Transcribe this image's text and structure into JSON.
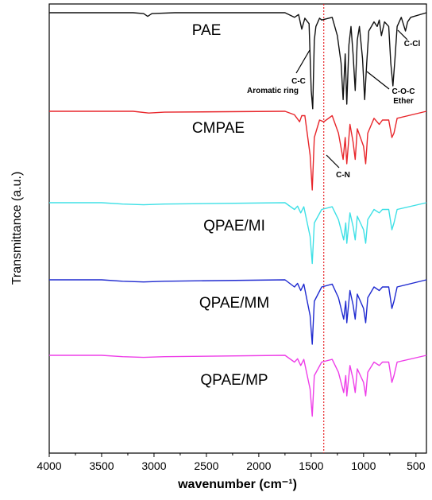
{
  "chart_data": {
    "type": "line",
    "title": "",
    "xlabel": "wavenumber (cm⁻¹)",
    "ylabel": "Transmittance (a.u.)",
    "x_range": [
      4000,
      400
    ],
    "x_reversed": true,
    "x_ticks": [
      4000,
      3500,
      3000,
      2500,
      2000,
      1500,
      1000,
      500
    ],
    "reference_line": {
      "x": 1380,
      "style": "dotted",
      "color": "#e8262b"
    },
    "legend": "none",
    "grid": false,
    "series": [
      {
        "name": "PAE",
        "color": "#111111",
        "baseline": 0.0,
        "points": [
          [
            4000,
            0.0
          ],
          [
            3200,
            0.0
          ],
          [
            3100,
            0.01
          ],
          [
            3060,
            0.04
          ],
          [
            3020,
            0.01
          ],
          [
            2800,
            0.0
          ],
          [
            1750,
            0.0
          ],
          [
            1660,
            0.05
          ],
          [
            1620,
            0.02
          ],
          [
            1590,
            0.18
          ],
          [
            1560,
            0.06
          ],
          [
            1520,
            0.12
          ],
          [
            1500,
            0.85
          ],
          [
            1485,
            1.05
          ],
          [
            1470,
            0.3
          ],
          [
            1455,
            0.15
          ],
          [
            1420,
            0.06
          ],
          [
            1400,
            0.08
          ],
          [
            1300,
            0.05
          ],
          [
            1250,
            0.25
          ],
          [
            1215,
            0.55
          ],
          [
            1195,
            0.95
          ],
          [
            1175,
            0.45
          ],
          [
            1160,
            1.0
          ],
          [
            1140,
            0.35
          ],
          [
            1120,
            0.15
          ],
          [
            1100,
            0.45
          ],
          [
            1080,
            0.85
          ],
          [
            1060,
            0.3
          ],
          [
            1040,
            0.15
          ],
          [
            1010,
            0.5
          ],
          [
            990,
            0.95
          ],
          [
            970,
            0.55
          ],
          [
            950,
            0.2
          ],
          [
            900,
            0.1
          ],
          [
            870,
            0.15
          ],
          [
            850,
            0.08
          ],
          [
            830,
            0.25
          ],
          [
            800,
            0.1
          ],
          [
            760,
            0.15
          ],
          [
            740,
            0.55
          ],
          [
            720,
            0.8
          ],
          [
            700,
            0.5
          ],
          [
            680,
            0.15
          ],
          [
            640,
            0.05
          ],
          [
            600,
            0.2
          ],
          [
            580,
            0.1
          ],
          [
            550,
            0.05
          ],
          [
            400,
            0.0
          ]
        ]
      },
      {
        "name": "CMPAE",
        "color": "#e8262b",
        "baseline": 0.0,
        "points": [
          [
            4000,
            0.0
          ],
          [
            3200,
            0.0
          ],
          [
            3050,
            0.02
          ],
          [
            2900,
            0.01
          ],
          [
            1750,
            0.0
          ],
          [
            1660,
            0.04
          ],
          [
            1610,
            0.12
          ],
          [
            1590,
            0.05
          ],
          [
            1560,
            0.05
          ],
          [
            1510,
            0.5
          ],
          [
            1490,
            0.9
          ],
          [
            1470,
            0.3
          ],
          [
            1420,
            0.1
          ],
          [
            1380,
            0.12
          ],
          [
            1300,
            0.05
          ],
          [
            1240,
            0.25
          ],
          [
            1195,
            0.55
          ],
          [
            1175,
            0.3
          ],
          [
            1160,
            0.6
          ],
          [
            1130,
            0.15
          ],
          [
            1100,
            0.35
          ],
          [
            1080,
            0.55
          ],
          [
            1060,
            0.2
          ],
          [
            1000,
            0.4
          ],
          [
            980,
            0.6
          ],
          [
            960,
            0.25
          ],
          [
            900,
            0.08
          ],
          [
            850,
            0.15
          ],
          [
            820,
            0.1
          ],
          [
            760,
            0.1
          ],
          [
            730,
            0.3
          ],
          [
            710,
            0.25
          ],
          [
            680,
            0.08
          ],
          [
            400,
            0.0
          ]
        ]
      },
      {
        "name": "QPAE/MI",
        "color": "#3ee0e6",
        "baseline": 0.0,
        "points": [
          [
            4000,
            0.0
          ],
          [
            3500,
            0.0
          ],
          [
            3300,
            0.02
          ],
          [
            3100,
            0.03
          ],
          [
            2900,
            0.02
          ],
          [
            1750,
            0.0
          ],
          [
            1660,
            0.1
          ],
          [
            1630,
            0.05
          ],
          [
            1600,
            0.15
          ],
          [
            1570,
            0.06
          ],
          [
            1510,
            0.5
          ],
          [
            1490,
            0.9
          ],
          [
            1470,
            0.3
          ],
          [
            1400,
            0.1
          ],
          [
            1300,
            0.06
          ],
          [
            1240,
            0.25
          ],
          [
            1190,
            0.55
          ],
          [
            1170,
            0.3
          ],
          [
            1160,
            0.6
          ],
          [
            1130,
            0.15
          ],
          [
            1100,
            0.35
          ],
          [
            1080,
            0.55
          ],
          [
            1060,
            0.2
          ],
          [
            1000,
            0.4
          ],
          [
            980,
            0.6
          ],
          [
            960,
            0.25
          ],
          [
            900,
            0.1
          ],
          [
            850,
            0.15
          ],
          [
            820,
            0.1
          ],
          [
            760,
            0.1
          ],
          [
            730,
            0.4
          ],
          [
            710,
            0.3
          ],
          [
            680,
            0.1
          ],
          [
            400,
            0.0
          ]
        ]
      },
      {
        "name": "QPAE/MM",
        "color": "#1f2ad0",
        "baseline": 0.0,
        "points": [
          [
            4000,
            0.0
          ],
          [
            3500,
            0.0
          ],
          [
            3300,
            0.02
          ],
          [
            3100,
            0.03
          ],
          [
            2900,
            0.02
          ],
          [
            1750,
            0.0
          ],
          [
            1660,
            0.1
          ],
          [
            1630,
            0.05
          ],
          [
            1600,
            0.15
          ],
          [
            1570,
            0.06
          ],
          [
            1510,
            0.5
          ],
          [
            1490,
            0.9
          ],
          [
            1470,
            0.3
          ],
          [
            1400,
            0.1
          ],
          [
            1300,
            0.06
          ],
          [
            1240,
            0.25
          ],
          [
            1190,
            0.55
          ],
          [
            1170,
            0.3
          ],
          [
            1160,
            0.6
          ],
          [
            1130,
            0.15
          ],
          [
            1100,
            0.35
          ],
          [
            1080,
            0.55
          ],
          [
            1060,
            0.2
          ],
          [
            1000,
            0.4
          ],
          [
            980,
            0.6
          ],
          [
            960,
            0.25
          ],
          [
            900,
            0.1
          ],
          [
            850,
            0.15
          ],
          [
            820,
            0.1
          ],
          [
            760,
            0.1
          ],
          [
            730,
            0.4
          ],
          [
            710,
            0.3
          ],
          [
            680,
            0.1
          ],
          [
            400,
            0.0
          ]
        ]
      },
      {
        "name": "QPAE/MP",
        "color": "#ee3ee8",
        "baseline": 0.0,
        "points": [
          [
            4000,
            0.0
          ],
          [
            3500,
            0.0
          ],
          [
            3300,
            0.02
          ],
          [
            3100,
            0.03
          ],
          [
            2900,
            0.02
          ],
          [
            1750,
            0.0
          ],
          [
            1660,
            0.1
          ],
          [
            1630,
            0.05
          ],
          [
            1600,
            0.15
          ],
          [
            1570,
            0.06
          ],
          [
            1510,
            0.5
          ],
          [
            1490,
            0.9
          ],
          [
            1470,
            0.3
          ],
          [
            1400,
            0.1
          ],
          [
            1300,
            0.06
          ],
          [
            1240,
            0.25
          ],
          [
            1190,
            0.55
          ],
          [
            1170,
            0.3
          ],
          [
            1160,
            0.6
          ],
          [
            1130,
            0.15
          ],
          [
            1100,
            0.35
          ],
          [
            1080,
            0.55
          ],
          [
            1060,
            0.2
          ],
          [
            1000,
            0.4
          ],
          [
            980,
            0.6
          ],
          [
            960,
            0.25
          ],
          [
            900,
            0.1
          ],
          [
            850,
            0.15
          ],
          [
            820,
            0.1
          ],
          [
            760,
            0.1
          ],
          [
            730,
            0.4
          ],
          [
            710,
            0.3
          ],
          [
            680,
            0.1
          ],
          [
            400,
            0.0
          ]
        ]
      }
    ],
    "sample_labels": [
      "PAE",
      "CMPAE",
      "QPAE/MI",
      "QPAE/MM",
      "QPAE/MP"
    ],
    "annotations": [
      {
        "lines": [
          "C-C",
          "Aromatic ring"
        ],
        "x": 1490
      },
      {
        "lines": [
          "C-Cl"
        ],
        "x": 720
      },
      {
        "lines": [
          "C-O-C",
          "Ether"
        ],
        "x": 970
      },
      {
        "lines": [
          "C-N"
        ],
        "x": 1370
      }
    ]
  }
}
